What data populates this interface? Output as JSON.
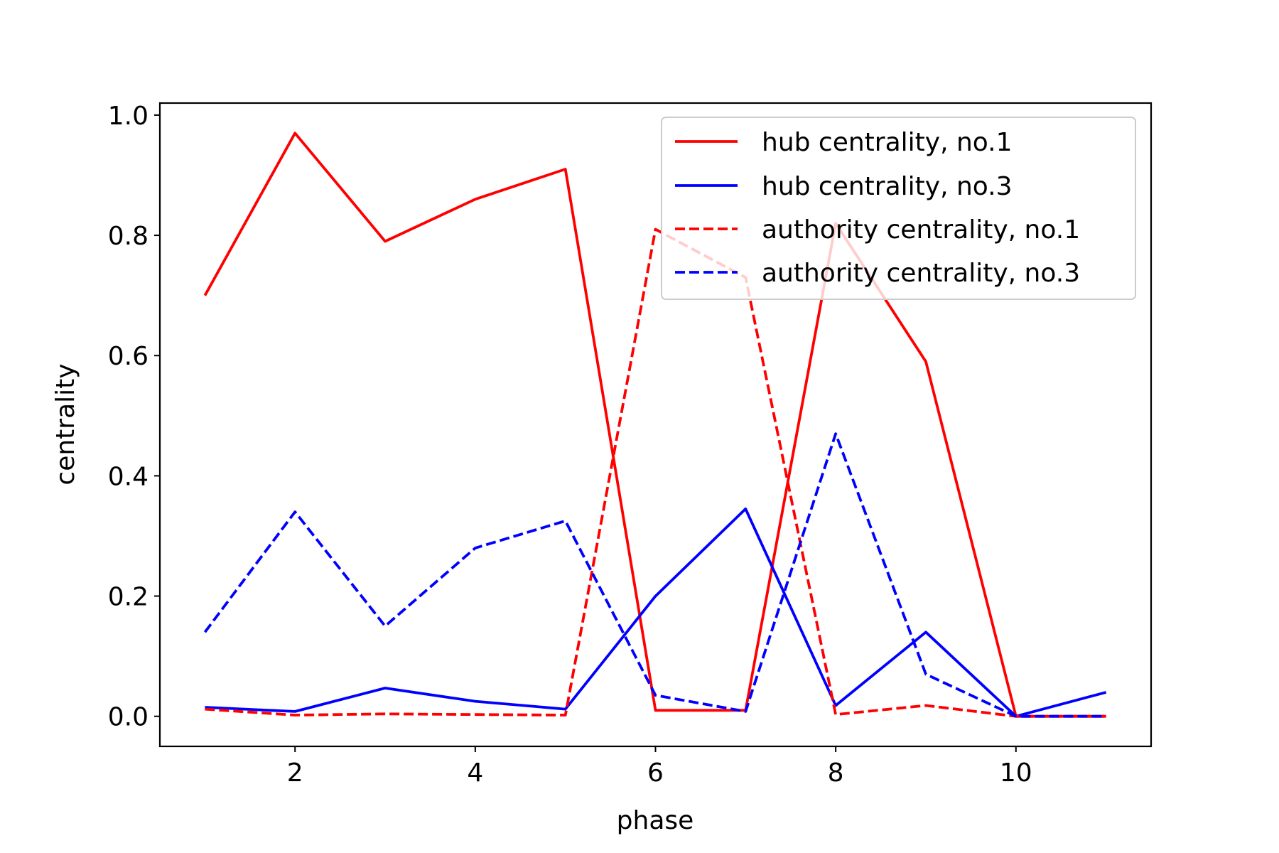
{
  "chart_data": {
    "type": "line",
    "title": "",
    "xlabel": "phase",
    "ylabel": "centrality",
    "xlim": [
      0.5,
      11.5
    ],
    "ylim": [
      -0.05,
      1.02
    ],
    "xticks": [
      2,
      4,
      6,
      8,
      10
    ],
    "xtick_labels": [
      "2",
      "4",
      "6",
      "8",
      "10"
    ],
    "yticks": [
      0.0,
      0.2,
      0.4,
      0.6,
      0.8,
      1.0
    ],
    "ytick_labels": [
      "0.0",
      "0.2",
      "0.4",
      "0.6",
      "0.8",
      "1.0"
    ],
    "grid": false,
    "legend_position": "top-right",
    "x": [
      1,
      2,
      3,
      4,
      5,
      6,
      7,
      8,
      9,
      10,
      11
    ],
    "series": [
      {
        "name": "hub centrality, no.1",
        "color": "#ff0000",
        "style": "solid",
        "values": [
          0.7,
          0.97,
          0.79,
          0.86,
          0.91,
          0.01,
          0.01,
          0.82,
          0.59,
          0.0,
          0.0
        ]
      },
      {
        "name": "hub centrality, no.3",
        "color": "#0000ff",
        "style": "solid",
        "values": [
          0.015,
          0.008,
          0.047,
          0.025,
          0.012,
          0.2,
          0.345,
          0.018,
          0.14,
          0.0,
          0.04
        ]
      },
      {
        "name": "authority centrality, no.1",
        "color": "#ff0000",
        "style": "dashed",
        "values": [
          0.012,
          0.002,
          0.004,
          0.003,
          0.002,
          0.81,
          0.73,
          0.003,
          0.018,
          0.0,
          0.0
        ]
      },
      {
        "name": "authority centrality, no.3",
        "color": "#0000ff",
        "style": "dashed",
        "values": [
          0.14,
          0.34,
          0.15,
          0.28,
          0.325,
          0.035,
          0.008,
          0.47,
          0.07,
          0.0,
          0.0
        ]
      }
    ]
  }
}
